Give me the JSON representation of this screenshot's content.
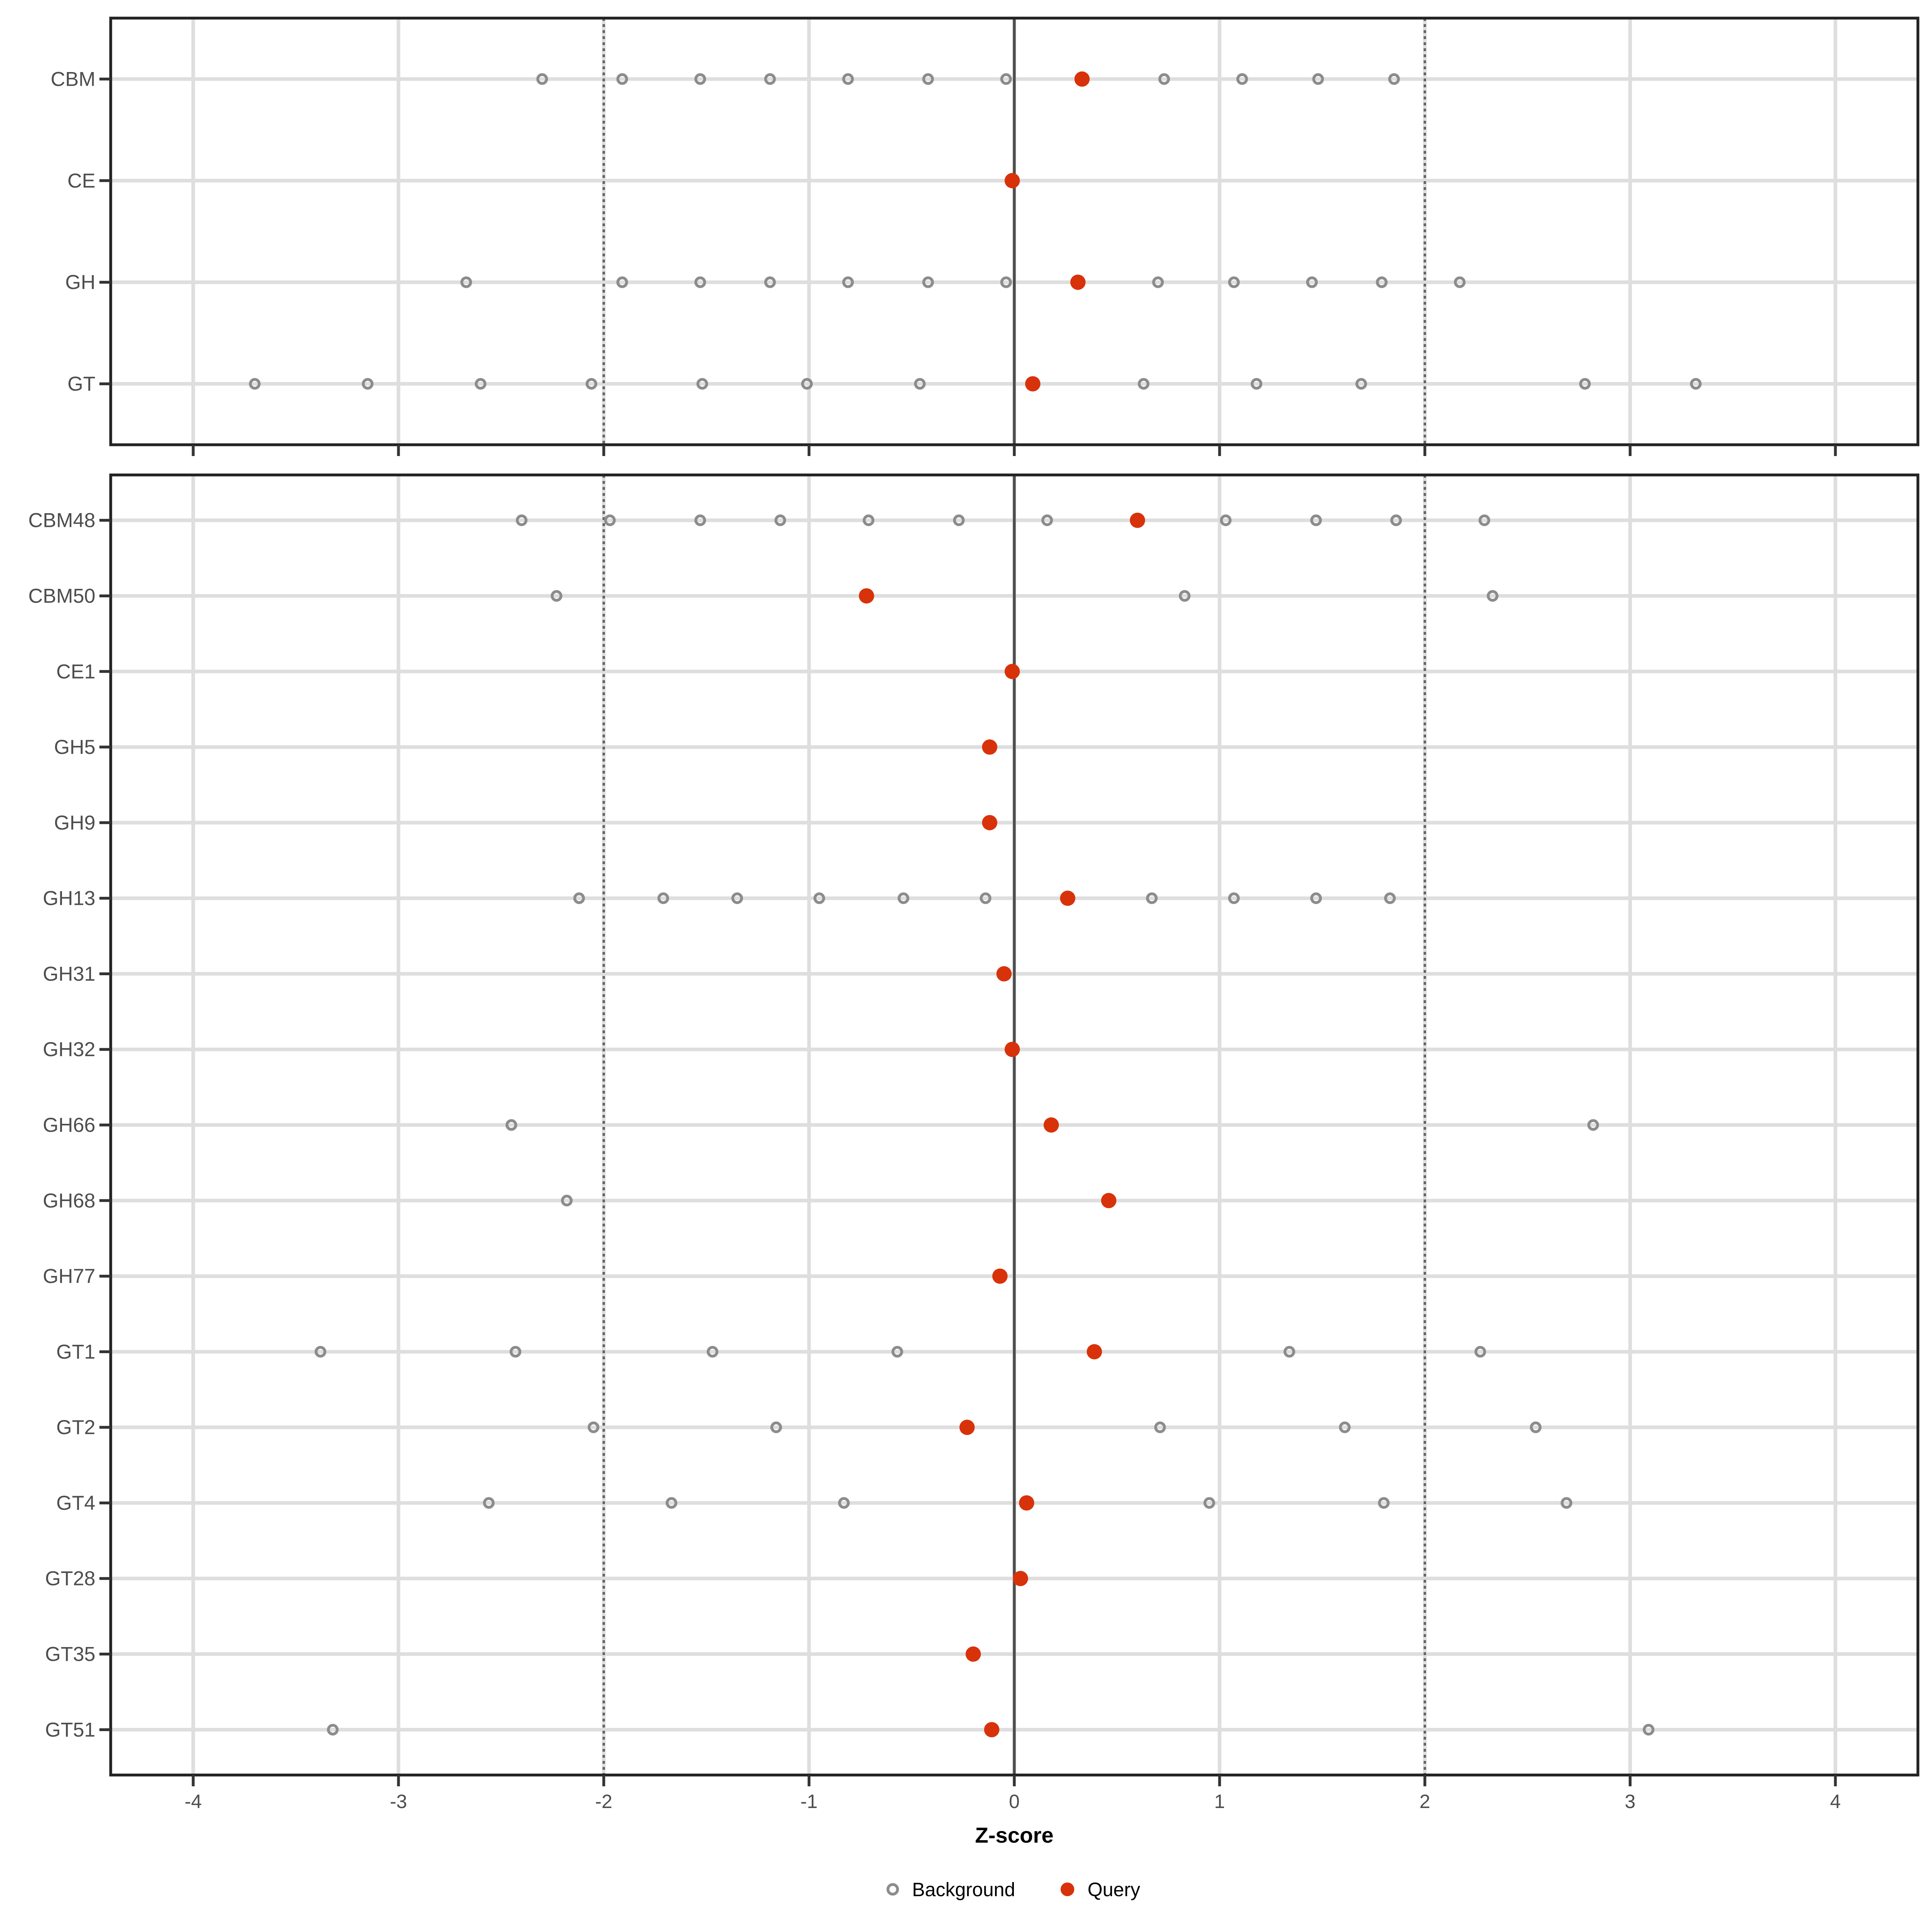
{
  "chart_data": {
    "type": "scatter",
    "title": "",
    "xlabel": "Z-score",
    "x_ticks": [
      -4,
      -3,
      -2,
      -1,
      0,
      1,
      2,
      3,
      4
    ],
    "xlim": [
      -4.4,
      4.4
    ],
    "grid": "major-vertical-and-row-lines",
    "legend_position": "bottom",
    "reference_lines": {
      "solid_at": 0,
      "dotted_at": [
        -2,
        2
      ]
    },
    "legend": {
      "items": [
        {
          "label": "Background",
          "marker": "open-circle"
        },
        {
          "label": "Query",
          "marker": "filled-circle"
        }
      ]
    },
    "colors": {
      "query_fill": "#D8320B",
      "background_stroke": "#8C8C8C",
      "gridline": "#DEDEDE",
      "zero_line": "#4D4D4D",
      "dotted_line": "#666666",
      "panel_border": "#222222",
      "tick_mark": "#333333",
      "axis_text": "#4D4D4D",
      "axis_title": "#000000",
      "legend_text": "#000000"
    },
    "panels": [
      {
        "name": "families",
        "rows": [
          {
            "label": "CBM",
            "query": 0.33,
            "background": [
              -2.3,
              -1.91,
              -1.53,
              -1.19,
              -0.81,
              -0.42,
              -0.04,
              0.73,
              1.11,
              1.48,
              1.85
            ]
          },
          {
            "label": "CE",
            "query": -0.01,
            "background": []
          },
          {
            "label": "GH",
            "query": 0.31,
            "background": [
              -2.67,
              -1.91,
              -1.53,
              -1.19,
              -0.81,
              -0.42,
              -0.04,
              0.7,
              1.07,
              1.45,
              1.79,
              2.17
            ]
          },
          {
            "label": "GT",
            "query": 0.09,
            "background": [
              -3.7,
              -3.15,
              -2.6,
              -2.06,
              -1.52,
              -1.01,
              -0.46,
              0.63,
              1.18,
              1.69,
              2.78,
              3.32
            ]
          }
        ]
      },
      {
        "name": "subfamilies",
        "rows": [
          {
            "label": "CBM48",
            "query": 0.6,
            "background": [
              -2.4,
              -1.97,
              -1.53,
              -1.14,
              -0.71,
              -0.27,
              0.16,
              1.03,
              1.47,
              1.86,
              2.29
            ]
          },
          {
            "label": "CBM50",
            "query": -0.72,
            "background": [
              -2.23,
              0.83,
              2.33
            ]
          },
          {
            "label": "CE1",
            "query": -0.01,
            "background": []
          },
          {
            "label": "GH5",
            "query": -0.12,
            "background": []
          },
          {
            "label": "GH9",
            "query": -0.12,
            "background": []
          },
          {
            "label": "GH13",
            "query": 0.26,
            "background": [
              -2.12,
              -1.71,
              -1.35,
              -0.95,
              -0.54,
              -0.14,
              0.67,
              1.07,
              1.47,
              1.83
            ]
          },
          {
            "label": "GH31",
            "query": -0.05,
            "background": []
          },
          {
            "label": "GH32",
            "query": -0.01,
            "background": []
          },
          {
            "label": "GH66",
            "query": 0.18,
            "background": [
              -2.45,
              2.82
            ]
          },
          {
            "label": "GH68",
            "query": 0.46,
            "background": [
              -2.18
            ]
          },
          {
            "label": "GH77",
            "query": -0.07,
            "background": []
          },
          {
            "label": "GT1",
            "query": 0.39,
            "background": [
              -3.38,
              -2.43,
              -1.47,
              -0.57,
              1.34,
              2.27
            ]
          },
          {
            "label": "GT2",
            "query": -0.23,
            "background": [
              -2.05,
              -1.16,
              0.71,
              1.61,
              2.54
            ]
          },
          {
            "label": "GT4",
            "query": 0.06,
            "background": [
              -2.56,
              -1.67,
              -0.83,
              0.95,
              1.8,
              2.69
            ]
          },
          {
            "label": "GT28",
            "query": 0.03,
            "background": []
          },
          {
            "label": "GT35",
            "query": -0.2,
            "background": []
          },
          {
            "label": "GT51",
            "query": -0.11,
            "background": [
              -3.32,
              3.09
            ]
          }
        ]
      }
    ]
  }
}
